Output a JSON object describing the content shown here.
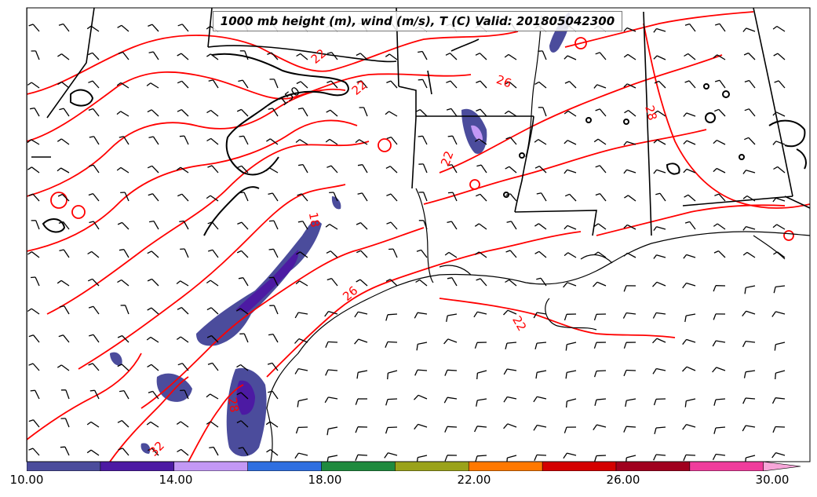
{
  "title": "1000 mb height (m), wind (m/s), T (C) Valid: 201805042300",
  "contour_labels": {
    "height": [
      "150"
    ],
    "temperature": [
      "22",
      "22",
      "26",
      "22",
      "28",
      "18",
      "26",
      "22",
      "28",
      "32"
    ]
  },
  "colorbar": {
    "ticks": [
      "10.00",
      "14.00",
      "18.00",
      "22.00",
      "26.00",
      "30.00"
    ],
    "colors": [
      "#4b4c9c",
      "#4c1aa3",
      "#c398f5",
      "#2f6fe0",
      "#1f8a3e",
      "#9aa21a",
      "#ff7800",
      "#d40000",
      "#a0001e",
      "#f03c9c",
      "#f7a6d9"
    ]
  },
  "colors": {
    "temperature_contour": "#ff0000",
    "height_contour": "#000000",
    "borders": "#000000",
    "barbs": "#000000"
  }
}
